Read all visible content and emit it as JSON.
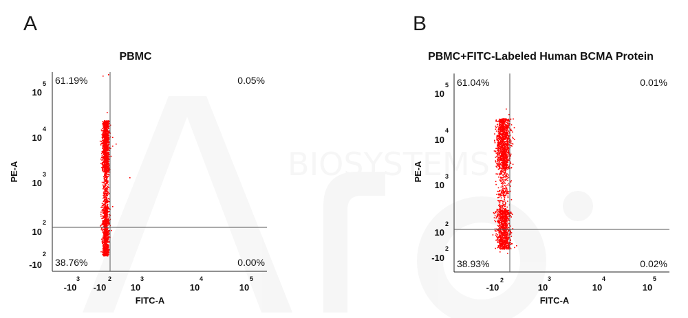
{
  "chart_data": [
    {
      "type": "scatter",
      "panel_label": "A",
      "title": "PBMC",
      "xlabel": "FITC-A",
      "ylabel": "PE-A",
      "x_ticks": [
        {
          "base": "-10",
          "exp": "3"
        },
        {
          "base": "-10",
          "exp": "2"
        },
        {
          "base": "10",
          "exp": "3"
        },
        {
          "base": "10",
          "exp": "4"
        },
        {
          "base": "10",
          "exp": "5"
        }
      ],
      "y_ticks": [
        {
          "base": "-10",
          "exp": "2"
        },
        {
          "base": "10",
          "exp": "2"
        },
        {
          "base": "10",
          "exp": "3"
        },
        {
          "base": "10",
          "exp": "4"
        },
        {
          "base": "10",
          "exp": "5"
        }
      ],
      "quadrants": {
        "upper_left": "61.19%",
        "upper_right": "0.05%",
        "lower_left": "38.76%",
        "lower_right": "0.00%"
      },
      "point_color": "#ff0000",
      "gate_color": "#555555"
    },
    {
      "type": "scatter",
      "panel_label": "B",
      "title": "PBMC+FITC-Labeled Human BCMA Protein",
      "xlabel": "FITC-A",
      "ylabel": "PE-A",
      "x_ticks": [
        {
          "base": "-10",
          "exp": "2"
        },
        {
          "base": "10",
          "exp": "3"
        },
        {
          "base": "10",
          "exp": "4"
        },
        {
          "base": "10",
          "exp": "5"
        }
      ],
      "y_ticks": [
        {
          "base": "-10",
          "exp": "2"
        },
        {
          "base": "10",
          "exp": "2"
        },
        {
          "base": "10",
          "exp": "3"
        },
        {
          "base": "10",
          "exp": "4"
        },
        {
          "base": "10",
          "exp": "5"
        }
      ],
      "quadrants": {
        "upper_left": "61.04%",
        "upper_right": "0.01%",
        "lower_left": "38.93%",
        "lower_right": "0.02%"
      },
      "point_color": "#ff0000",
      "gate_color": "#555555"
    }
  ],
  "watermark": {
    "text": "BIOSYSTEMS"
  }
}
